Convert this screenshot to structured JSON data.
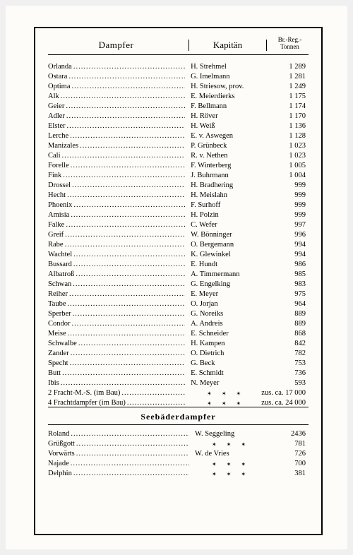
{
  "headers": {
    "dampfer": "Dampfer",
    "kapitaen": "Kapitän",
    "tonnen_line1": "Br.-Reg.-",
    "tonnen_line2": "Tonnen"
  },
  "section2_title": "Seebäderdampfer",
  "ships": [
    {
      "name": "Orlanda",
      "kapt": "H. Strehmel",
      "ton": "1 289"
    },
    {
      "name": "Ostara",
      "kapt": "G. Imelmann",
      "ton": "1 281"
    },
    {
      "name": "Optima",
      "kapt": "H. Striesow, prov.",
      "ton": "1 249"
    },
    {
      "name": "Alk",
      "kapt": "E. Meierdierks",
      "ton": "1 175"
    },
    {
      "name": "Geier",
      "kapt": "F. Bellmann",
      "ton": "1 174"
    },
    {
      "name": "Adler",
      "kapt": "H. Röver",
      "ton": "1 170"
    },
    {
      "name": "Elster",
      "kapt": "H. Weiß",
      "ton": "1 136"
    },
    {
      "name": "Lerche",
      "kapt": "E. v. Aswegen",
      "ton": "1 128"
    },
    {
      "name": "Manizales",
      "kapt": "P. Grünbeck",
      "ton": "1 023"
    },
    {
      "name": "Cali",
      "kapt": "R. v. Nethen",
      "ton": "1 023"
    },
    {
      "name": "Forelle",
      "kapt": "F. Winterberg",
      "ton": "1 005"
    },
    {
      "name": "Fink",
      "kapt": "J. Buhrmann",
      "ton": "1 004"
    },
    {
      "name": "Drossel",
      "kapt": "H. Bradhering",
      "ton": "999"
    },
    {
      "name": "Hecht",
      "kapt": "H. Meislahn",
      "ton": "999"
    },
    {
      "name": "Phoenix",
      "kapt": "F. Surhoff",
      "ton": "999"
    },
    {
      "name": "Amisia",
      "kapt": "H. Polzin",
      "ton": "999"
    },
    {
      "name": "Falke",
      "kapt": "C. Wefer",
      "ton": "997"
    },
    {
      "name": "Greif",
      "kapt": "W. Bönninger",
      "ton": "996"
    },
    {
      "name": "Rabe",
      "kapt": "O. Bergemann",
      "ton": "994"
    },
    {
      "name": "Wachtel",
      "kapt": "K. Glewinkel",
      "ton": "994"
    },
    {
      "name": "Bussard",
      "kapt": "E. Hundt",
      "ton": "986"
    },
    {
      "name": "Albatroß",
      "kapt": "A. Timmermann",
      "ton": "985"
    },
    {
      "name": "Schwan",
      "kapt": "G. Engelking",
      "ton": "983"
    },
    {
      "name": "Reiher",
      "kapt": "E. Meyer",
      "ton": "975"
    },
    {
      "name": "Taube",
      "kapt": "O. Jorjan",
      "ton": "964"
    },
    {
      "name": "Sperber",
      "kapt": "G. Noreiks",
      "ton": "889"
    },
    {
      "name": "Condor",
      "kapt": "A. Andreis",
      "ton": "889"
    },
    {
      "name": "Meise",
      "kapt": "E. Schneider",
      "ton": "868"
    },
    {
      "name": "Schwalbe",
      "kapt": "H. Kampen",
      "ton": "842"
    },
    {
      "name": "Zander",
      "kapt": "O. Dietrich",
      "ton": "782"
    },
    {
      "name": "Specht",
      "kapt": "G. Beck",
      "ton": "753"
    },
    {
      "name": "Butt",
      "kapt": "E. Schmidt",
      "ton": "736"
    },
    {
      "name": "Ibis",
      "kapt": "N. Meyer",
      "ton": "593"
    }
  ],
  "build_rows": [
    {
      "name": "2 Fracht-M.-S. (im Bau)",
      "stars": "✶ ✶ ✶",
      "ton": "zus. ca. 17 000"
    },
    {
      "name": "4 Frachtdampfer (im Bau)",
      "stars": "✶ ✶ ✶",
      "ton": "zus. ca. 24 000"
    }
  ],
  "seebad": [
    {
      "name": "Roland",
      "kapt": "W. Seggeling",
      "ton": "2436"
    },
    {
      "name": "Grüßgott",
      "stars": "✶ ✶ ✶",
      "ton": "781"
    },
    {
      "name": "Vorwärts",
      "kapt": "W. de Vries",
      "ton": "726"
    },
    {
      "name": "Najade",
      "stars": "✶ ✶ ✶",
      "ton": "700"
    },
    {
      "name": "Delphin",
      "stars": "✶ ✶ ✶",
      "ton": "381"
    }
  ]
}
